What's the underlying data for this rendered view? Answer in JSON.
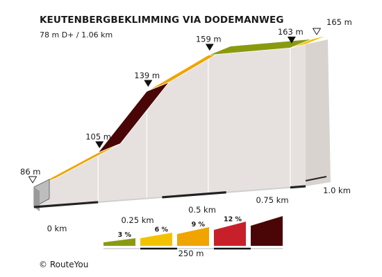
{
  "header": {
    "title": "KEUTENBERGBEKLIMMING VIA DODEMANWEG",
    "subtitle": "78 m D+ / 1.06 km"
  },
  "footer": {
    "copyright": "© RouteYou"
  },
  "colors": {
    "grade_3": "#8a9a10",
    "grade_6": "#f2c200",
    "grade_9": "#f0a400",
    "grade_12": "#c8202a",
    "grade_15": "#4a0606",
    "side_face": "#e6e1df",
    "side_line": "#ffffff",
    "base_block": "#222222",
    "base_cap": "#bdbdbd"
  },
  "chart_data": {
    "type": "area",
    "title": "KEUTENBERGBEKLIMMING VIA DODEMANWEG",
    "subtitle": "78 m D+ / 1.06 km",
    "x_unit": "km",
    "y_unit": "m",
    "xlim": [
      0,
      1.06
    ],
    "ylim": [
      86,
      165
    ],
    "x_ticks": [
      {
        "value": 0,
        "label": "0 km"
      },
      {
        "value": 0.25,
        "label": "0.25 km"
      },
      {
        "value": 0.5,
        "label": "0.5 km"
      },
      {
        "value": 0.75,
        "label": "0.75 km"
      },
      {
        "value": 1.0,
        "label": "1.0 km"
      }
    ],
    "points": [
      {
        "x": 0,
        "y": 86,
        "label": "86 m",
        "marker": "start"
      },
      {
        "x": 0.25,
        "y": 105,
        "label": "105 m",
        "marker": "filled"
      },
      {
        "x": 0.44,
        "y": 139,
        "label": "139 m",
        "marker": "filled"
      },
      {
        "x": 0.68,
        "y": 159,
        "label": "159 m",
        "marker": "filled"
      },
      {
        "x": 1.0,
        "y": 163,
        "label": "163 m",
        "marker": "filled"
      },
      {
        "x": 1.06,
        "y": 165,
        "label": "165 m",
        "marker": "end"
      }
    ],
    "segments": [
      {
        "from": 0,
        "to": 0.25,
        "grade_color": "#f0a400"
      },
      {
        "from": 0.25,
        "to": 0.44,
        "grade_color": "#4a0606"
      },
      {
        "from": 0.44,
        "to": 0.68,
        "grade_color": "#f0a400"
      },
      {
        "from": 0.68,
        "to": 1.0,
        "grade_color": "#8a9a10"
      },
      {
        "from": 1.0,
        "to": 1.06,
        "grade_color": "#f2c200"
      }
    ],
    "legend": {
      "placement": "bottom-center",
      "items": [
        {
          "label": "3 %",
          "color": "#8a9a10",
          "grade": 3
        },
        {
          "label": "6 %",
          "color": "#f2c200",
          "grade": 6
        },
        {
          "label": "9 %",
          "color": "#f0a400",
          "grade": 9
        },
        {
          "label": "12 %",
          "color": "#c8202a",
          "grade": 12
        },
        {
          "label": "",
          "color": "#4a0606",
          "grade": 15
        }
      ],
      "scale_label": "250 m"
    }
  }
}
